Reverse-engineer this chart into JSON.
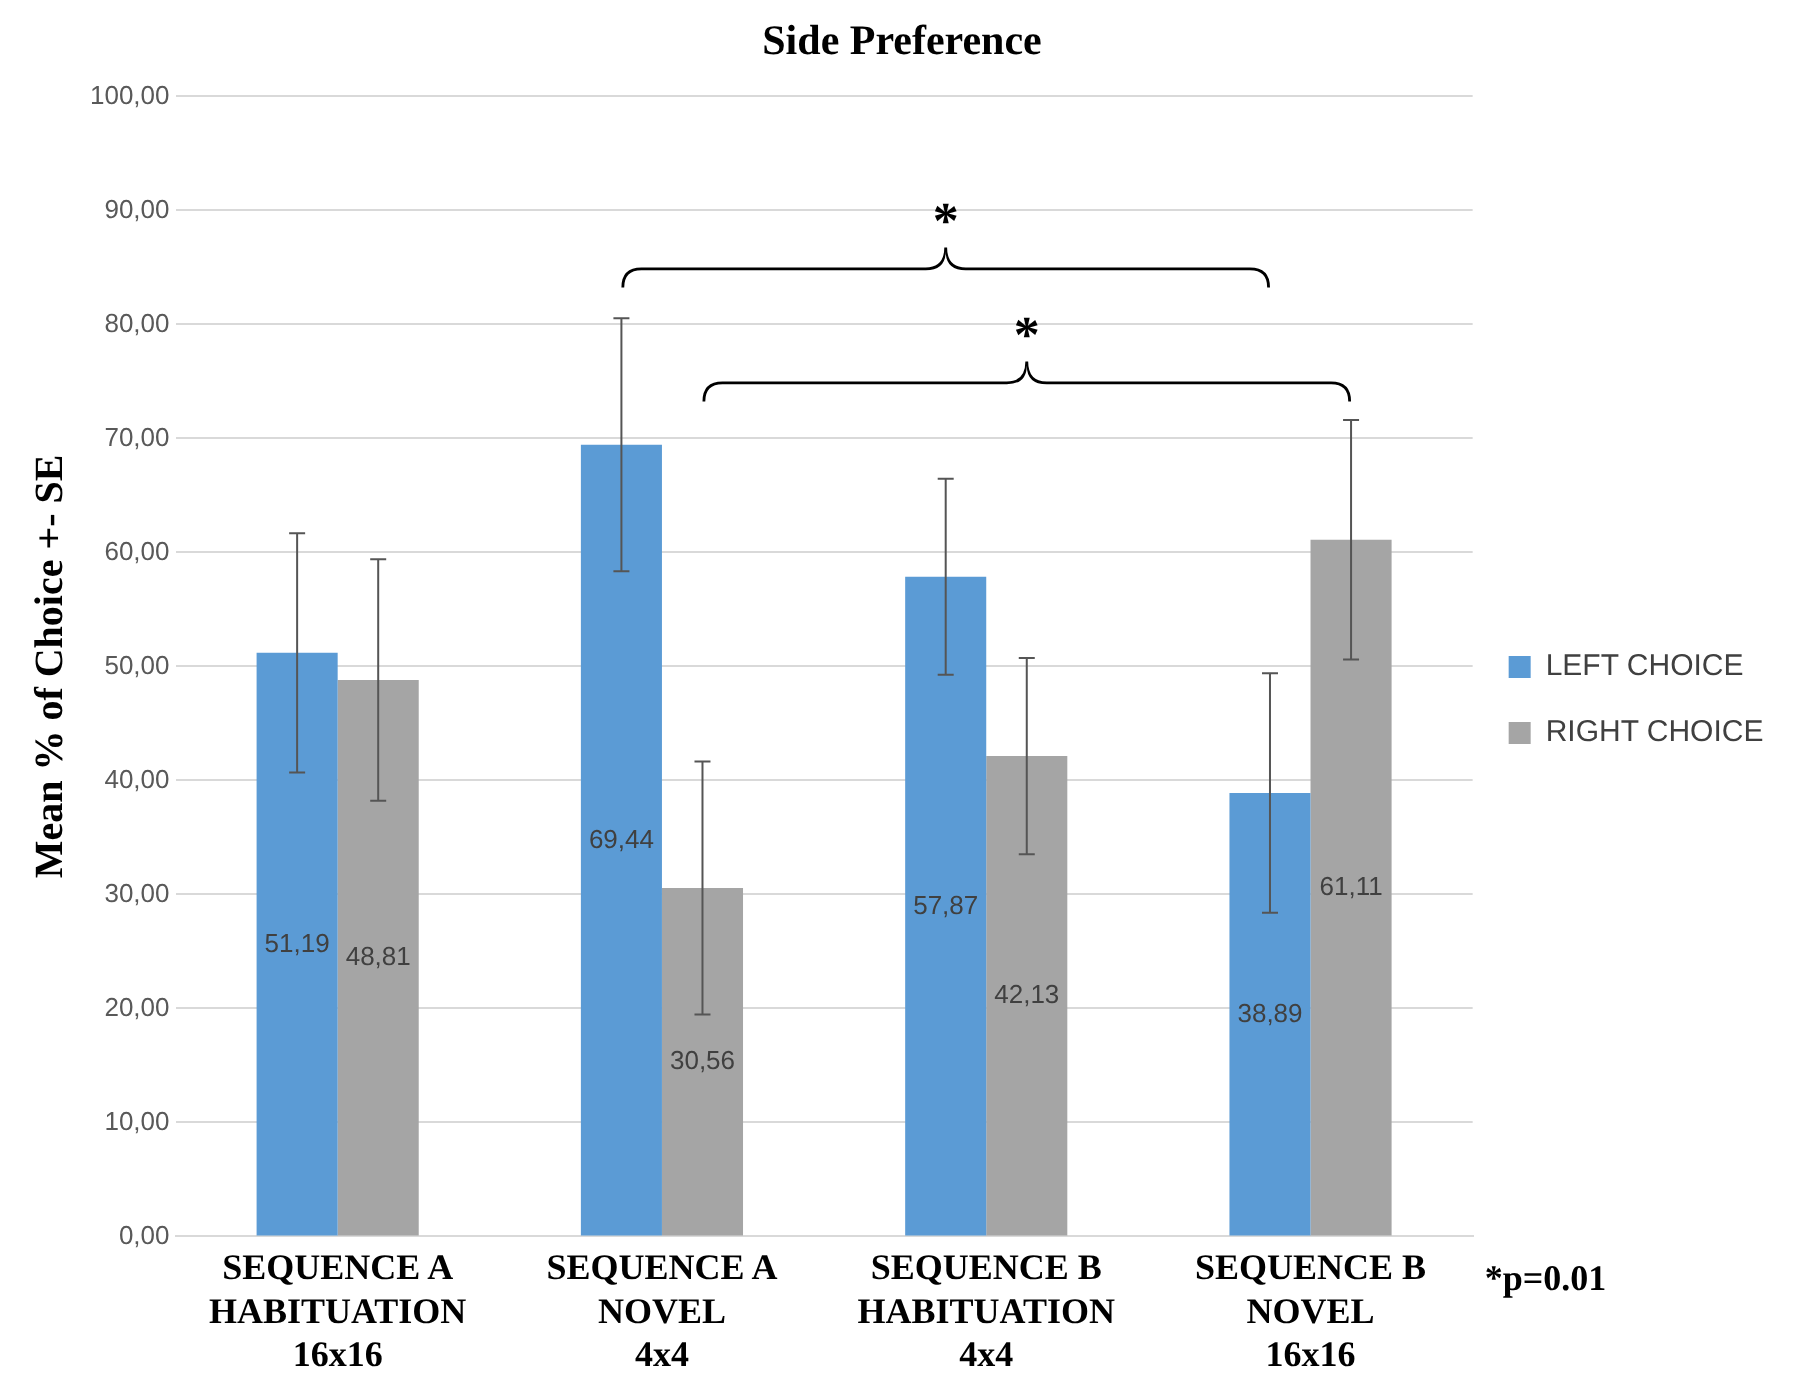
{
  "chart_data": {
    "type": "bar",
    "title": "Side Preference",
    "ylabel": "Mean % of Choice +- SE",
    "categories": [
      "SEQUENCE A\nHABITUATION\n16x16",
      "SEQUENCE A\nNOVEL\n4x4",
      "SEQUENCE B\nHABITUATION\n4x4",
      "SEQUENCE B\nNOVEL\n16x16"
    ],
    "series": [
      {
        "name": "LEFT CHOICE",
        "color": "#5b9bd5",
        "values": [
          51.19,
          69.44,
          57.87,
          38.89
        ],
        "errors": [
          10.5,
          11.1,
          8.6,
          10.5
        ],
        "value_labels": [
          "51,19",
          "69,44",
          "57,87",
          "38,89"
        ]
      },
      {
        "name": "RIGHT CHOICE",
        "color": "#a5a5a5",
        "values": [
          48.81,
          30.56,
          42.13,
          61.11
        ],
        "errors": [
          10.6,
          11.1,
          8.6,
          10.5
        ],
        "value_labels": [
          "48,81",
          "30,56",
          "42,13",
          "61,11"
        ]
      }
    ],
    "ylim": [
      0,
      100
    ],
    "yticks": [
      {
        "value": 0,
        "label": "0,00"
      },
      {
        "value": 10,
        "label": "10,00"
      },
      {
        "value": 20,
        "label": "20,00"
      },
      {
        "value": 30,
        "label": "30,00"
      },
      {
        "value": 40,
        "label": "40,00"
      },
      {
        "value": 50,
        "label": "50,00"
      },
      {
        "value": 60,
        "label": "60,00"
      },
      {
        "value": 70,
        "label": "70,00"
      },
      {
        "value": 80,
        "label": "80,00"
      },
      {
        "value": 90,
        "label": "90,00"
      },
      {
        "value": 100,
        "label": "100,00"
      }
    ],
    "grid": "y",
    "legend": "right",
    "annotations": [
      "*",
      "*",
      "*p=0.01"
    ]
  }
}
